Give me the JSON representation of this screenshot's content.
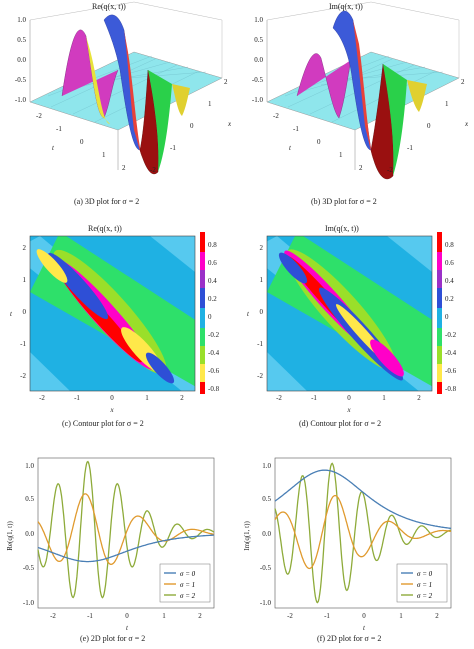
{
  "figure": {
    "row1": {
      "left": {
        "title": "Re(q(x, t))",
        "caption": "(a) 3D plot for σ = 2"
      },
      "right": {
        "title": "Im(q(x, t))",
        "caption": "(b) 3D plot for σ = 2"
      },
      "z_ticks": [
        "1.0",
        "0.5",
        "0.0",
        "-0.5",
        "-1.0"
      ],
      "t_ticks": [
        "-2",
        "-1",
        "0",
        "1",
        "2"
      ],
      "x_ticks": [
        "-2",
        "-1",
        "0",
        "1",
        "2"
      ],
      "t_label": "t",
      "x_label": "x"
    },
    "row2": {
      "left": {
        "title": "Re(q(x, t))",
        "caption": "(c) Contour plot for σ = 2"
      },
      "right": {
        "title": "Im(q(x, t))",
        "caption": "(d) Contour plot for σ = 2"
      },
      "x_ticks": [
        "-2",
        "-1",
        "0",
        "1",
        "2"
      ],
      "t_ticks": [
        "2",
        "1",
        "0",
        "-1",
        "-2"
      ],
      "x_label": "x",
      "t_label": "t",
      "colorbar_ticks": [
        "0.8",
        "0.6",
        "0.4",
        "0.2",
        "0",
        "-0.2",
        "-0.4",
        "-0.6",
        "-0.8"
      ]
    },
    "row3": {
      "left": {
        "ylabel": "Re(q(1, t))",
        "caption": "(e) 2D plot for σ = 2"
      },
      "right": {
        "ylabel": "Im(q(1, t))",
        "caption": "(f) 2D plot for σ = 2"
      },
      "xlabel": "t",
      "x_ticks": [
        "-2",
        "-1",
        "0",
        "1",
        "2"
      ],
      "y_ticks": [
        "1.0",
        "0.5",
        "0.0",
        "-0.5",
        "-1.0"
      ],
      "legend": [
        "σ = 0",
        "σ = 1",
        "σ = 2"
      ]
    }
  },
  "colors": {
    "sigma0": "#4a7fb5",
    "sigma1": "#e09a2e",
    "sigma2": "#8eab3a"
  },
  "chart_data": [
    {
      "type": "line",
      "xlabel": "t",
      "ylabel": "Re(q(1, t))",
      "xlim": [
        -2.3,
        2.3
      ],
      "ylim": [
        -1.05,
        1.05
      ],
      "series": [
        {
          "name": "σ = 0",
          "model": "sech",
          "A": 0.4,
          "sign": -1,
          "freq": 0,
          "t0": -1,
          "w": 1.0
        },
        {
          "name": "σ = 1",
          "model": "sech-cos",
          "A": 0.55,
          "freq": 4.4,
          "phase": 0.3,
          "t0": -1,
          "w": 0.9
        },
        {
          "name": "σ = 2",
          "model": "sech-cos",
          "A": 1.0,
          "freq": 8.0,
          "phase": 0,
          "t0": -1,
          "w": 0.85
        }
      ]
    },
    {
      "type": "line",
      "xlabel": "t",
      "ylabel": "Im(q(1, t))",
      "xlim": [
        -2.3,
        2.3
      ],
      "ylim": [
        -1.05,
        1.05
      ],
      "series": [
        {
          "name": "σ = 0",
          "model": "sech",
          "A": 0.88,
          "sign": 1,
          "freq": 0,
          "t0": -1,
          "w": 1.0
        },
        {
          "name": "σ = 1",
          "model": "sech-sin",
          "A": 0.55,
          "freq": 4.4,
          "phase": 0.3,
          "t0": -1,
          "w": 0.9
        },
        {
          "name": "σ = 2",
          "model": "sech-sin",
          "A": 1.0,
          "freq": 8.0,
          "phase": 0,
          "t0": -1,
          "w": 0.85
        }
      ]
    }
  ]
}
